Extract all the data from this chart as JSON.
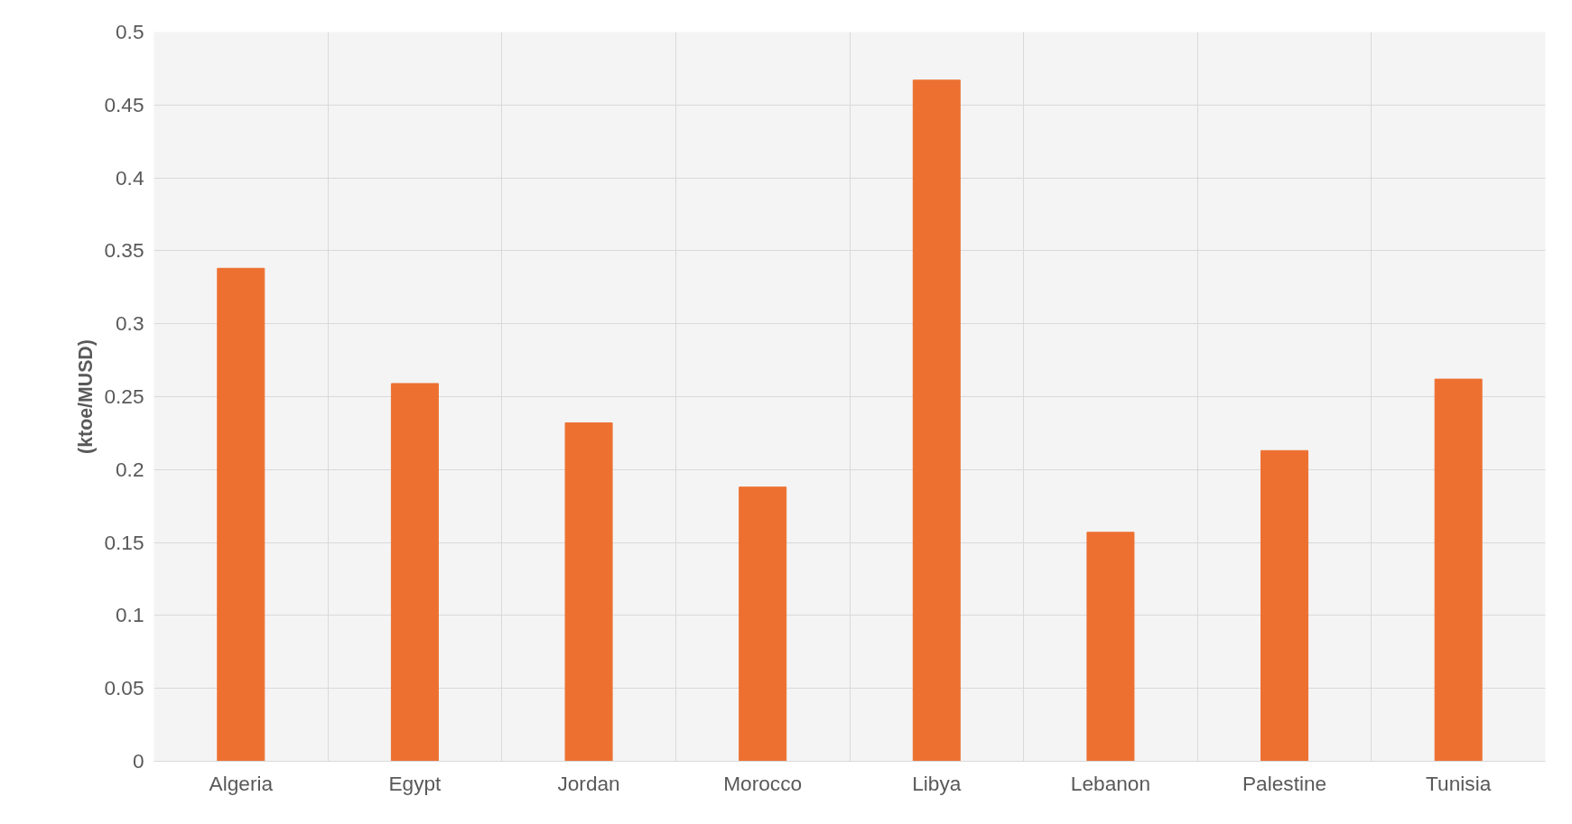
{
  "chart_data": {
    "type": "bar",
    "ylabel": "(ktoe/MUSD)",
    "categories": [
      "Algeria",
      "Egypt",
      "Jordan",
      "Morocco",
      "Libya",
      "Lebanon",
      "Palestine",
      "Tunisia"
    ],
    "values": [
      0.338,
      0.259,
      0.232,
      0.188,
      0.467,
      0.157,
      0.213,
      0.262
    ],
    "color": "#ed7031",
    "ylim": [
      0,
      0.5
    ],
    "yticks": [
      0,
      0.05,
      0.1,
      0.15,
      0.2,
      0.25,
      0.3,
      0.35,
      0.4,
      0.45,
      0.5
    ],
    "grid": true
  }
}
